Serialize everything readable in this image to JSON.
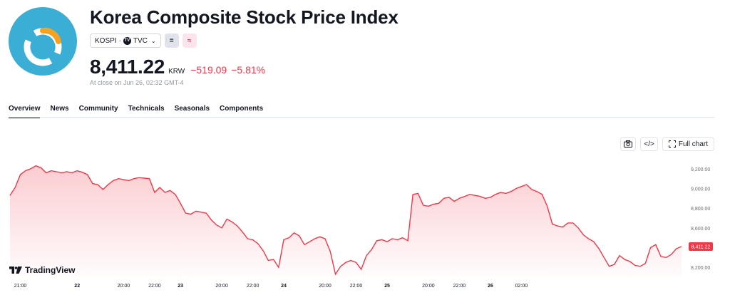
{
  "header": {
    "title": "Korea Composite Stock Price Index",
    "symbol": "KOSPI",
    "source": "TVC",
    "price": "8,411.22",
    "currency": "KRW",
    "change": "−519.09",
    "change_pct": "−5.81%",
    "close_note": "At close on Jun 26, 02:32 GMT-4",
    "logo_icon": "kospi-logo-icon",
    "badge_gray_icon": "equal-icon",
    "badge_pink_icon": "approx-icon"
  },
  "tabs": [
    {
      "label": "Overview",
      "active": true
    },
    {
      "label": "News",
      "active": false
    },
    {
      "label": "Community",
      "active": false
    },
    {
      "label": "Technicals",
      "active": false
    },
    {
      "label": "Seasonals",
      "active": false
    },
    {
      "label": "Components",
      "active": false
    }
  ],
  "toolbar": {
    "snapshot_icon": "camera-icon",
    "embed_icon": "code-icon",
    "full_chart_label": "Full chart"
  },
  "brand": {
    "watermark": "TradingView"
  },
  "colors": {
    "line": "#f23645",
    "area_top": "#f7a3ab",
    "logo_bg": "#3aaed4",
    "logo_accent": "#f6a21e"
  },
  "chart_data": {
    "type": "area",
    "last_value_label": "8,411.22",
    "ylim": [
      8100,
      9300
    ],
    "y_ticks": [
      {
        "value": 9200,
        "label": "9,200.00"
      },
      {
        "value": 9000,
        "label": "9,000.00"
      },
      {
        "value": 8800,
        "label": "8,800.00"
      },
      {
        "value": 8600,
        "label": "8,600.00"
      },
      {
        "value": 8200,
        "label": "8,200.00"
      }
    ],
    "x_ticks": [
      {
        "index": 2,
        "label": "21:00",
        "bold": false
      },
      {
        "index": 13,
        "label": "22",
        "bold": true
      },
      {
        "index": 22,
        "label": "20:00",
        "bold": false
      },
      {
        "index": 28,
        "label": "22:00",
        "bold": false
      },
      {
        "index": 33,
        "label": "23",
        "bold": true
      },
      {
        "index": 41,
        "label": "20:00",
        "bold": false
      },
      {
        "index": 47,
        "label": "22:00",
        "bold": false
      },
      {
        "index": 53,
        "label": "24",
        "bold": true
      },
      {
        "index": 61,
        "label": "20:00",
        "bold": false
      },
      {
        "index": 67,
        "label": "22:00",
        "bold": false
      },
      {
        "index": 73,
        "label": "25",
        "bold": true
      },
      {
        "index": 81,
        "label": "20:00",
        "bold": false
      },
      {
        "index": 87,
        "label": "22:00",
        "bold": false
      },
      {
        "index": 93,
        "label": "26",
        "bold": true
      },
      {
        "index": 99,
        "label": "02:00",
        "bold": false
      }
    ],
    "values": [
      8930,
      9010,
      9140,
      9180,
      9200,
      9230,
      9210,
      9160,
      9180,
      9170,
      9160,
      9170,
      9160,
      9180,
      9165,
      9140,
      9050,
      9040,
      8990,
      9040,
      9080,
      9100,
      9090,
      9080,
      9100,
      9110,
      9105,
      9100,
      8960,
      9010,
      8960,
      8980,
      8940,
      8850,
      8750,
      8740,
      8770,
      8760,
      8750,
      8680,
      8630,
      8600,
      8690,
      8660,
      8620,
      8560,
      8490,
      8480,
      8440,
      8370,
      8270,
      8280,
      8200,
      8480,
      8500,
      8550,
      8520,
      8430,
      8460,
      8490,
      8510,
      8490,
      8360,
      8130,
      8210,
      8250,
      8270,
      8250,
      8180,
      8320,
      8380,
      8470,
      8480,
      8460,
      8490,
      8480,
      8500,
      8470,
      8940,
      8950,
      8830,
      8820,
      8840,
      8850,
      8900,
      8910,
      8870,
      8900,
      8920,
      8940,
      8930,
      8920,
      8900,
      8910,
      8940,
      8960,
      8950,
      8970,
      9000,
      9020,
      9040,
      8990,
      8970,
      8940,
      8820,
      8640,
      8620,
      8610,
      8650,
      8650,
      8600,
      8530,
      8490,
      8460,
      8390,
      8300,
      8210,
      8230,
      8320,
      8280,
      8260,
      8220,
      8210,
      8240,
      8400,
      8430,
      8310,
      8300,
      8330,
      8390,
      8411
    ]
  }
}
